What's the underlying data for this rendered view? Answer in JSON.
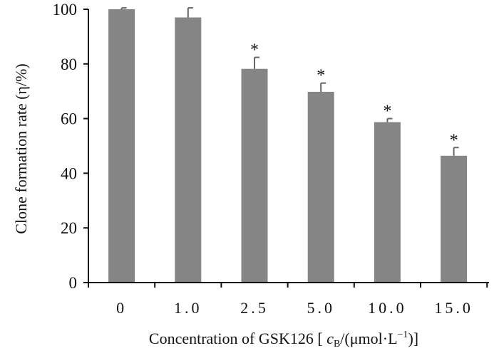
{
  "chart_data": {
    "type": "bar",
    "categories": [
      "0",
      "1.0",
      "2.5",
      "5.0",
      "10.0",
      "15.0"
    ],
    "values": [
      100,
      97,
      78.2,
      69.8,
      58.7,
      46.4
    ],
    "errors": [
      0.5,
      3.5,
      4.2,
      3.2,
      1.3,
      3.0
    ],
    "significance": [
      "",
      "",
      "*",
      "*",
      "*",
      "*"
    ],
    "bar_color": "#858585",
    "ylim": [
      0,
      100
    ],
    "yticks": [
      "0",
      "20",
      "40",
      "60",
      "80",
      "100"
    ],
    "ylabel": "Clone formation rate (η/%)",
    "xlabel": "Concentration of GSK126 [ cB/(μmol·L−1)]",
    "xlabel_parts": {
      "prefix": "Concentration of GSK",
      "number": "126",
      "bracket_open": " [ ",
      "c": "c",
      "sub_b": "B",
      "unit_mid": "/(μmol·L",
      "sup": "−1",
      "close": ")]"
    }
  }
}
